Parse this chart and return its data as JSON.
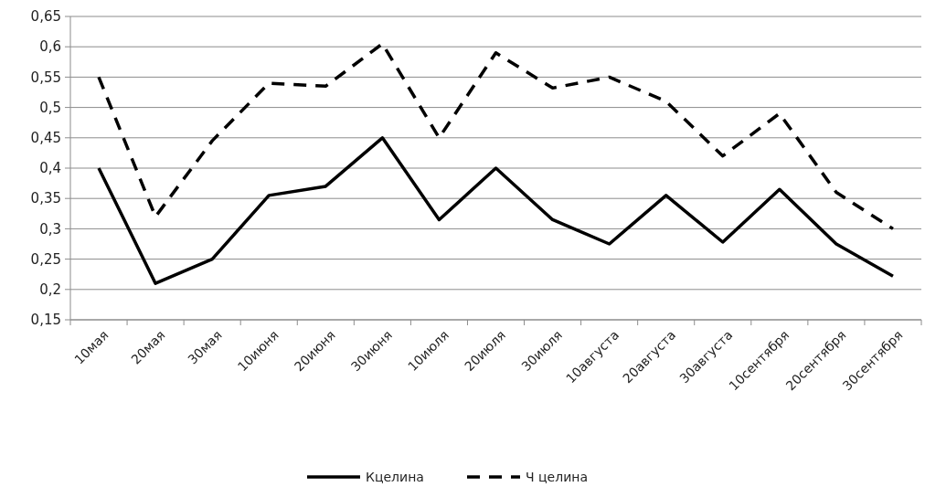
{
  "chart_data": {
    "type": "line",
    "categories": [
      "10мая",
      "20мая",
      "30мая",
      "10июня",
      "20июня",
      "30июня",
      "10июля",
      "20июля",
      "30июля",
      "10августа",
      "20августа",
      "30августа",
      "10сентября",
      "20сентября",
      "30сентября"
    ],
    "series": [
      {
        "name": "Кцелина",
        "color": "#000000",
        "line_style": "solid",
        "values": [
          0.4,
          0.21,
          0.25,
          0.355,
          0.37,
          0.45,
          0.315,
          0.4,
          0.315,
          0.275,
          0.355,
          0.278,
          0.365,
          0.275,
          0.222
        ]
      },
      {
        "name": "Ч целина",
        "color": "#000000",
        "line_style": "dashed",
        "values": [
          0.55,
          0.32,
          0.445,
          0.54,
          0.535,
          0.605,
          0.45,
          0.59,
          0.532,
          0.55,
          0.51,
          0.42,
          0.49,
          0.36,
          0.3
        ]
      }
    ],
    "ylim": [
      0.15,
      0.65
    ],
    "yticks": [
      {
        "value": 0.15,
        "label": "0,15"
      },
      {
        "value": 0.2,
        "label": "0,2"
      },
      {
        "value": 0.25,
        "label": "0,25"
      },
      {
        "value": 0.3,
        "label": "0,3"
      },
      {
        "value": 0.35,
        "label": "0,35"
      },
      {
        "value": 0.4,
        "label": "0,4"
      },
      {
        "value": 0.45,
        "label": "0,45"
      },
      {
        "value": 0.5,
        "label": "0,5"
      },
      {
        "value": 0.55,
        "label": "0,55"
      },
      {
        "value": 0.6,
        "label": "0,6"
      },
      {
        "value": 0.65,
        "label": "0,65"
      }
    ],
    "grid": "y",
    "legend": "bottom",
    "marker": "none"
  }
}
